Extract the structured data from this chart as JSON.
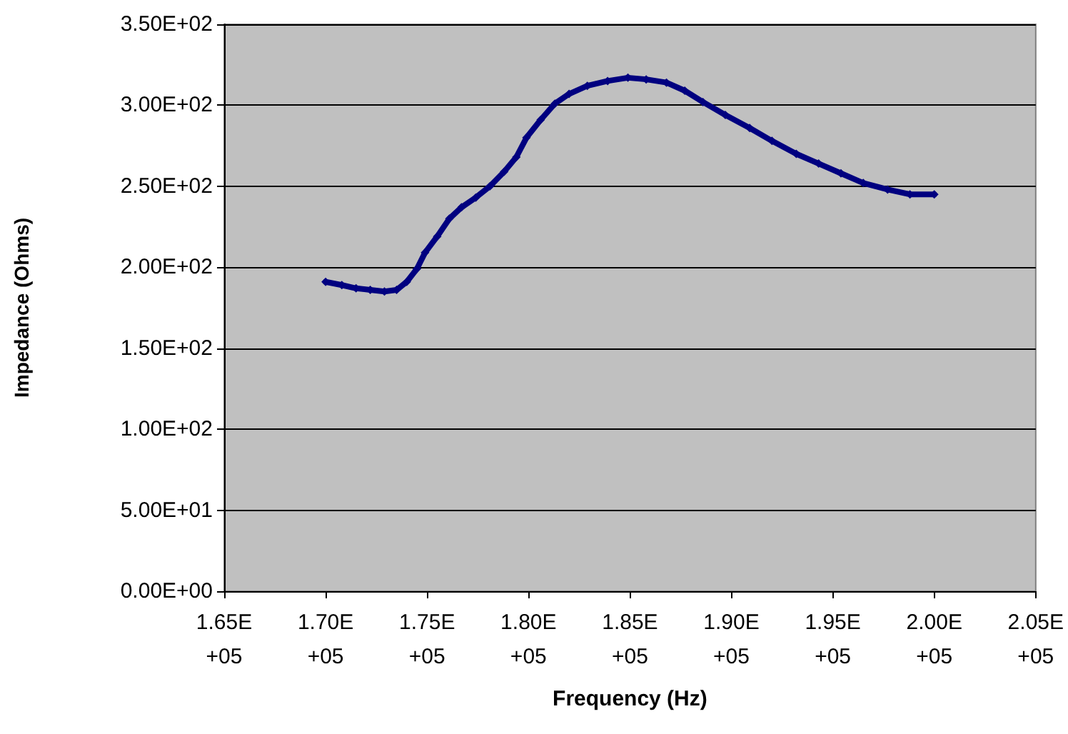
{
  "chart_data": {
    "type": "line",
    "xlabel": "Frequency (Hz)",
    "ylabel": "Impedance (Ohms)",
    "x": [
      170000,
      170800,
      171500,
      172200,
      172900,
      173500,
      174000,
      174500,
      174900,
      175500,
      176100,
      176700,
      177400,
      178100,
      178800,
      179400,
      179900,
      180600,
      181300,
      182000,
      182900,
      183900,
      184900,
      185800,
      186800,
      187700,
      188600,
      189700,
      190900,
      192000,
      193200,
      194300,
      195400,
      196500,
      197700,
      198800,
      200000
    ],
    "series": [
      {
        "color": "#000080",
        "values": [
          191,
          189,
          187,
          186,
          185,
          186,
          191,
          199,
          209,
          219,
          230,
          237,
          243,
          250,
          259,
          268,
          280,
          291,
          301,
          307,
          312,
          315,
          317,
          316,
          314,
          309,
          302,
          294,
          286,
          278,
          270,
          264,
          258,
          252,
          248,
          245,
          245
        ]
      }
    ],
    "xlim": [
      165000,
      205000
    ],
    "xticks": [
      {
        "value": 165000,
        "label": "1.65E+05"
      },
      {
        "value": 170000,
        "label": "1.70E+05"
      },
      {
        "value": 175000,
        "label": "1.75E+05"
      },
      {
        "value": 180000,
        "label": "1.80E+05"
      },
      {
        "value": 185000,
        "label": "1.85E+05"
      },
      {
        "value": 190000,
        "label": "1.90E+05"
      },
      {
        "value": 195000,
        "label": "1.95E+05"
      },
      {
        "value": 200000,
        "label": "2.00E+05"
      },
      {
        "value": 205000,
        "label": "2.05E+05"
      }
    ],
    "ylim": [
      0,
      350
    ],
    "yticks": [
      {
        "value": 0,
        "label": "0.00E+00"
      },
      {
        "value": 50,
        "label": "5.00E+01"
      },
      {
        "value": 100,
        "label": "1.00E+02"
      },
      {
        "value": 150,
        "label": "1.50E+02"
      },
      {
        "value": 200,
        "label": "2.00E+02"
      },
      {
        "value": 250,
        "label": "2.50E+02"
      },
      {
        "value": 300,
        "label": "3.00E+02"
      },
      {
        "value": 350,
        "label": "3.50E+02"
      }
    ],
    "grid": "y",
    "marker": "diamond",
    "line_style": "solid"
  }
}
